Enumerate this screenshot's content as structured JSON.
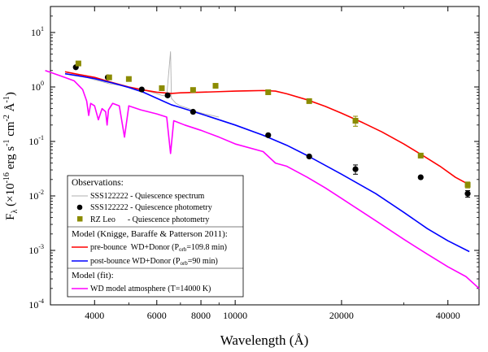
{
  "chart_data": {
    "type": "line",
    "xscale": "log",
    "yscale": "log",
    "xlim": [
      3000,
      49000
    ],
    "ylim": [
      0.0001,
      30
    ],
    "xlabel": "Wavelength (Å)",
    "ylabel": {
      "main": "F",
      "sub": "λ",
      "paren_open": " (×10",
      "exp1": "-16",
      "unit": " erg s",
      "exp2": "-1",
      "cm": " cm",
      "exp3": "-2",
      "aa": " Å",
      "exp4": "-1",
      "paren_close": ")"
    },
    "x_ticks": [
      {
        "value": 4000,
        "label": "4000"
      },
      {
        "value": 6000,
        "label": "6000"
      },
      {
        "value": 8000,
        "label": "8000"
      },
      {
        "value": 10000,
        "label": "10000"
      },
      {
        "value": 20000,
        "label": "20000"
      },
      {
        "value": 40000,
        "label": "40000"
      }
    ],
    "y_ticks": [
      {
        "value": 0.0001,
        "base": "10",
        "exp": "-4"
      },
      {
        "value": 0.001,
        "base": "10",
        "exp": "-3"
      },
      {
        "value": 0.01,
        "base": "10",
        "exp": "-2"
      },
      {
        "value": 0.1,
        "base": "10",
        "exp": "-1"
      },
      {
        "value": 1,
        "base": "10",
        "exp": "0"
      },
      {
        "value": 10,
        "base": "10",
        "exp": "1"
      }
    ],
    "colors": {
      "spectrum": "#b0b0b0",
      "sss_phot": "#000000",
      "rz_phot": "#8b8b00",
      "prebounce": "#ff0000",
      "postbounce": "#0000ff",
      "wd": "#ff00ff"
    },
    "series": [
      {
        "key": "prebounce",
        "x": [
          3300,
          3600,
          4000,
          4500,
          5000,
          5500,
          6000,
          6600,
          7000,
          8000,
          9000,
          10000,
          11000,
          12000,
          13000,
          14000,
          16000,
          18000,
          20000,
          23000,
          26000,
          30000,
          34000,
          38000,
          42000,
          46000
        ],
        "y": [
          1.9,
          1.7,
          1.5,
          1.2,
          1.0,
          0.88,
          0.8,
          0.76,
          0.78,
          0.8,
          0.82,
          0.84,
          0.85,
          0.86,
          0.84,
          0.75,
          0.58,
          0.44,
          0.33,
          0.22,
          0.15,
          0.09,
          0.055,
          0.035,
          0.022,
          0.016
        ]
      },
      {
        "key": "postbounce",
        "x": [
          3300,
          3600,
          4000,
          4500,
          5000,
          5500,
          6000,
          6600,
          7000,
          8000,
          9000,
          10000,
          12000,
          14000,
          16000,
          20000,
          25000,
          30000,
          35000,
          40000,
          46000
        ],
        "y": [
          1.75,
          1.6,
          1.42,
          1.18,
          0.98,
          0.8,
          0.62,
          0.47,
          0.42,
          0.32,
          0.25,
          0.2,
          0.13,
          0.085,
          0.055,
          0.025,
          0.011,
          0.005,
          0.0025,
          0.0015,
          0.00095
        ]
      },
      {
        "key": "wd",
        "x": [
          2900,
          3200,
          3500,
          3700,
          3800,
          3850,
          3900,
          4000,
          4100,
          4200,
          4300,
          4340,
          4380,
          4500,
          4700,
          4861,
          5000,
          5400,
          6000,
          6400,
          6563,
          6700,
          7200,
          8000,
          9000,
          10000,
          12000,
          13000,
          14000,
          16000,
          18000,
          20000,
          22000,
          25000,
          30000,
          35000,
          40000,
          45000,
          49000
        ],
        "y": [
          2.0,
          1.6,
          1.3,
          0.9,
          0.55,
          0.3,
          0.5,
          0.45,
          0.25,
          0.4,
          0.35,
          0.2,
          0.38,
          0.5,
          0.45,
          0.12,
          0.45,
          0.38,
          0.32,
          0.28,
          0.06,
          0.24,
          0.2,
          0.16,
          0.12,
          0.09,
          0.065,
          0.04,
          0.035,
          0.022,
          0.014,
          0.009,
          0.006,
          0.0035,
          0.0016,
          0.00085,
          0.0005,
          0.00033,
          0.0002
        ]
      }
    ],
    "spectrum": {
      "key": "spectrum",
      "x": [
        3600,
        3800,
        4000,
        4200,
        4400,
        4600,
        4800,
        5000,
        5200,
        5400,
        5600,
        5800,
        6000,
        6200,
        6400,
        6563,
        6600,
        6800,
        7000,
        7400,
        7800,
        8200,
        8600,
        9000
      ],
      "y": [
        1.6,
        1.5,
        1.35,
        1.25,
        1.15,
        1.1,
        1.05,
        1.0,
        0.95,
        0.9,
        0.85,
        0.8,
        0.75,
        0.7,
        0.68,
        4.5,
        0.62,
        0.5,
        0.45,
        0.4,
        0.35,
        0.32,
        0.3,
        0.28
      ]
    },
    "points": [
      {
        "key": "sss_phot",
        "marker": "circle",
        "x": [
          3540,
          4360,
          5440,
          6440,
          7600,
          12400,
          16200,
          21900,
          33500,
          45500
        ],
        "y": [
          2.3,
          1.5,
          0.9,
          0.7,
          0.35,
          0.13,
          0.053,
          0.031,
          0.022,
          0.011
        ],
        "yerr": [
          0,
          0,
          0,
          0,
          0,
          0,
          0,
          0.006,
          0,
          0.0015
        ]
      },
      {
        "key": "rz_phot",
        "marker": "square",
        "x": [
          3600,
          4400,
          5000,
          6200,
          7600,
          8800,
          12400,
          16200,
          21900,
          33500,
          45500
        ],
        "y": [
          2.7,
          1.5,
          1.4,
          0.95,
          0.88,
          1.05,
          0.8,
          0.55,
          0.24,
          0.055,
          0.016
        ],
        "yerr": [
          0,
          0,
          0,
          0,
          0,
          0,
          0,
          0.04,
          0.05,
          0.005,
          0.002
        ]
      }
    ],
    "legend": {
      "position": "bottom-left",
      "obs_header": "Observations:",
      "spectrum_label": "SSS122222 - Quiescence spectrum",
      "sss_label": "SSS122222 - Quiescence photometry",
      "rz_label": "RZ Leo      - Quiescence photometry",
      "model_header": "Model (Knigge, Baraffe & Patterson 2011):",
      "pre_label_a": "pre-bounce  WD+Donor (P",
      "pre_sub": "orb",
      "pre_label_b": "=109.8 min)",
      "post_label_a": "post-bounce WD+Donor (P",
      "post_sub": "orb",
      "post_label_b": "=90 min)",
      "fit_header": "Model (fit):",
      "wd_label": "WD model atmosphere (T=14000 K)"
    }
  }
}
